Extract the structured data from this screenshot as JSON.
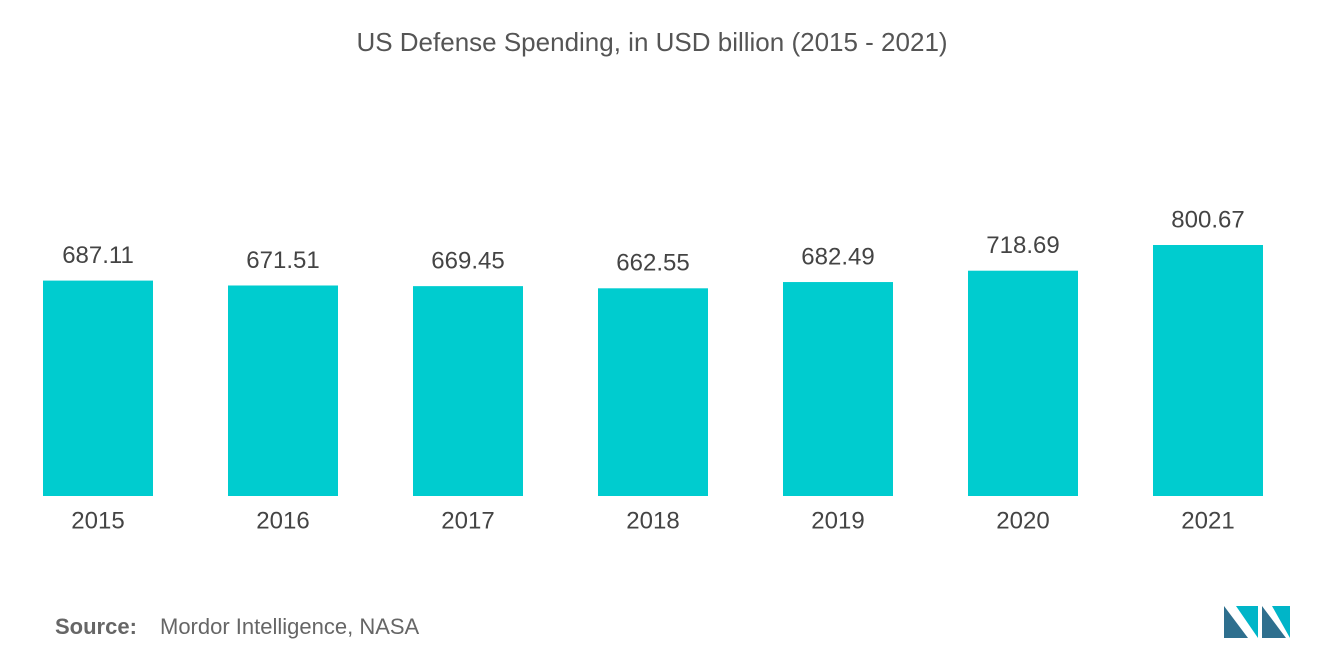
{
  "chart_data": {
    "type": "bar",
    "title": "US Defense Spending, in USD billion (2015 - 2021)",
    "categories": [
      "2015",
      "2016",
      "2017",
      "2018",
      "2019",
      "2020",
      "2021"
    ],
    "values": [
      687.11,
      671.51,
      669.45,
      662.55,
      682.49,
      718.69,
      800.67
    ],
    "value_labels": [
      "687.11",
      "671.51",
      "669.45",
      "662.55",
      "682.49",
      "718.69",
      "800.67"
    ],
    "color": "#00cccf",
    "source_label": "Source:",
    "source": "Mordor Intelligence, NASA"
  }
}
